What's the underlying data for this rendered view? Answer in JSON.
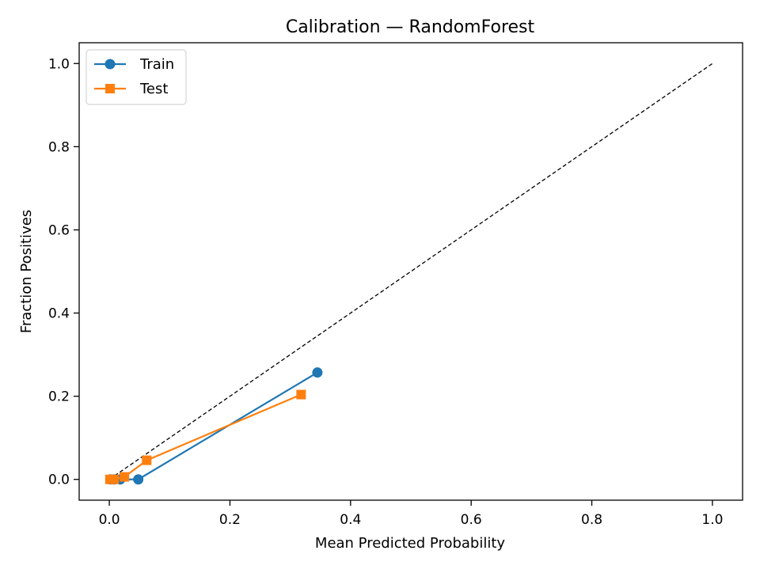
{
  "chart_data": {
    "type": "line",
    "title": "Calibration — RandomForest",
    "xlabel": "Mean Predicted Probability",
    "ylabel": "Fraction Positives",
    "xlim": [
      -0.05,
      1.05
    ],
    "ylim": [
      -0.05,
      1.05
    ],
    "xticks": [
      0.0,
      0.2,
      0.4,
      0.6,
      0.8,
      1.0
    ],
    "yticks": [
      0.0,
      0.2,
      0.4,
      0.6,
      0.8,
      1.0
    ],
    "xtick_labels": [
      "0.0",
      "0.2",
      "0.4",
      "0.6",
      "0.8",
      "1.0"
    ],
    "ytick_labels": [
      "0.0",
      "0.2",
      "0.4",
      "0.6",
      "0.8",
      "1.0"
    ],
    "grid": false,
    "legend": "top-left",
    "reference_line": {
      "x": [
        0,
        1
      ],
      "y": [
        0,
        1
      ],
      "style": "dashed",
      "color": "#000000"
    },
    "series": [
      {
        "name": "Train",
        "color": "#1f77b4",
        "marker": "circle",
        "x": [
          0.002,
          0.008,
          0.018,
          0.048,
          0.345
        ],
        "y": [
          0.0,
          0.0,
          0.0,
          0.0,
          0.257
        ]
      },
      {
        "name": "Test",
        "color": "#ff7f0e",
        "marker": "square",
        "x": [
          0.001,
          0.008,
          0.025,
          0.062,
          0.318
        ],
        "y": [
          0.0,
          0.0,
          0.006,
          0.046,
          0.204
        ]
      }
    ]
  }
}
